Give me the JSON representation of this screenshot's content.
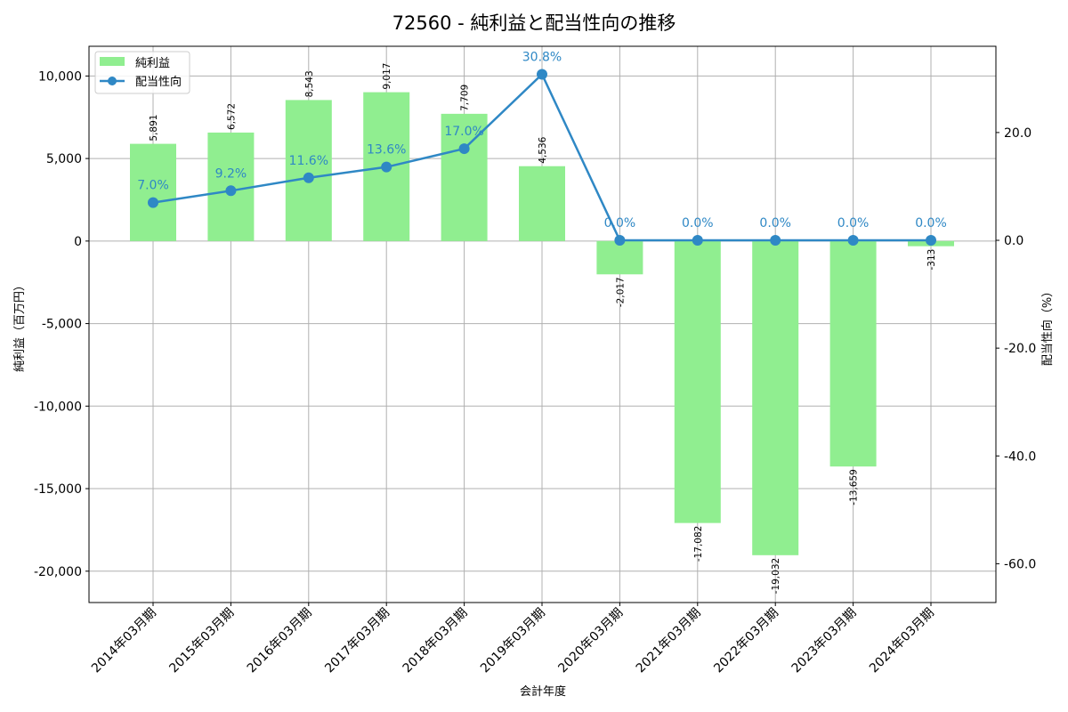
{
  "chart_data": {
    "type": "bar+line",
    "title": "72560 - 純利益と配当性向の推移",
    "xlabel": "会計年度",
    "ylabel": "純利益（百万円）",
    "y2label": "配当性向（%）",
    "categories": [
      "2014年03月期",
      "2015年03月期",
      "2016年03月期",
      "2017年03月期",
      "2018年03月期",
      "2019年03月期",
      "2020年03月期",
      "2021年03月期",
      "2022年03月期",
      "2023年03月期",
      "2024年03月期"
    ],
    "series": [
      {
        "name": "純利益",
        "type": "bar",
        "axis": "left",
        "color": "#90ee90",
        "values": [
          5891,
          6572,
          8543,
          9017,
          7709,
          4536,
          -2017,
          -17082,
          -19032,
          -13659,
          -313
        ],
        "labels": [
          "5,891",
          "6,572",
          "8,543",
          "9,017",
          "7,709",
          "4,536",
          "-2,017",
          "-17,082",
          "-19,032",
          "-13,659",
          "-313"
        ]
      },
      {
        "name": "配当性向",
        "type": "line",
        "axis": "right",
        "color": "#2f88c5",
        "values": [
          7.0,
          9.2,
          11.6,
          13.6,
          17.0,
          30.8,
          0.0,
          0.0,
          0.0,
          0.0,
          0.0
        ],
        "labels": [
          "7.0%",
          "9.2%",
          "11.6%",
          "13.6%",
          "17.0%",
          "30.8%",
          "0.0%",
          "0.0%",
          "0.0%",
          "0.0%",
          "0.0%"
        ]
      }
    ],
    "yticks": [
      10000,
      5000,
      0,
      -5000,
      -10000,
      -15000,
      -20000
    ],
    "ytick_labels": [
      "10,000",
      "5,000",
      "0",
      "-5,000",
      "-10,000",
      "-15,000",
      "-20,000"
    ],
    "ylim": [
      -21900,
      11800
    ],
    "y2ticks": [
      20.0,
      0.0,
      -20.0,
      -40.0,
      -60.0
    ],
    "y2tick_labels": [
      "20.0",
      "0.0",
      "-20.0",
      "-40.0",
      "-60.0"
    ],
    "y2lim": [
      -67.2,
      36.0
    ],
    "grid": true,
    "legend_position": "upper left"
  }
}
